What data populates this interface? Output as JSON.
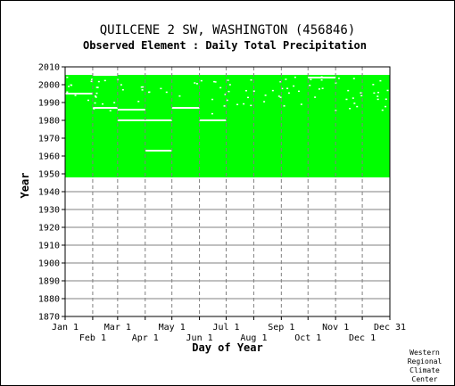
{
  "chart_data": {
    "type": "heatmap",
    "title": "QUILCENE 2 SW, WASHINGTON   (456846)",
    "subtitle": "Observed Element : Daily Total Precipitation",
    "xlabel": "Day of Year",
    "ylabel": "Year",
    "xlim": [
      1,
      366
    ],
    "ylim": [
      1870,
      2010
    ],
    "y_ticks": [
      1870,
      1880,
      1890,
      1900,
      1910,
      1920,
      1930,
      1940,
      1950,
      1960,
      1970,
      1980,
      1990,
      2000,
      2010
    ],
    "x_ticks_top": [
      {
        "label": "Jan 1",
        "day": 1
      },
      {
        "label": "Mar 1",
        "day": 60
      },
      {
        "label": "May 1",
        "day": 121
      },
      {
        "label": "Jul 1",
        "day": 182
      },
      {
        "label": "Sep 1",
        "day": 244
      },
      {
        "label": "Nov 1",
        "day": 305
      },
      {
        "label": "Dec 31",
        "day": 366
      }
    ],
    "x_ticks_bottom": [
      {
        "label": "Feb 1",
        "day": 32
      },
      {
        "label": "Apr 1",
        "day": 91
      },
      {
        "label": "Jun 1",
        "day": 152
      },
      {
        "label": "Aug 1",
        "day": 213
      },
      {
        "label": "Oct 1",
        "day": 274
      },
      {
        "label": "Dec 1",
        "day": 335
      }
    ],
    "grid": true,
    "fill_color": "#00ff00",
    "grid_color": "#808080",
    "coverage": {
      "start_year": 1948,
      "end_year": 2005.5,
      "gaps": [
        {
          "day_start": 1,
          "day_end": 32,
          "year": 1995
        },
        {
          "day_start": 32,
          "day_end": 60,
          "year": 2005.5
        },
        {
          "day_start": 32,
          "day_end": 60,
          "year": 1987
        },
        {
          "day_start": 60,
          "day_end": 91,
          "year": 1986
        },
        {
          "day_start": 60,
          "day_end": 121,
          "year": 1980
        },
        {
          "day_start": 121,
          "day_end": 152,
          "year": 1987
        },
        {
          "day_start": 152,
          "day_end": 182,
          "year": 1980
        },
        {
          "day_start": 91,
          "day_end": 121,
          "year": 1963
        },
        {
          "day_start": 152,
          "day_end": 190,
          "year": 1947.5
        },
        {
          "day_start": 274,
          "day_end": 305,
          "year": 2004
        }
      ]
    }
  },
  "credit": [
    "Western",
    "Regional",
    "Climate",
    "Center"
  ]
}
